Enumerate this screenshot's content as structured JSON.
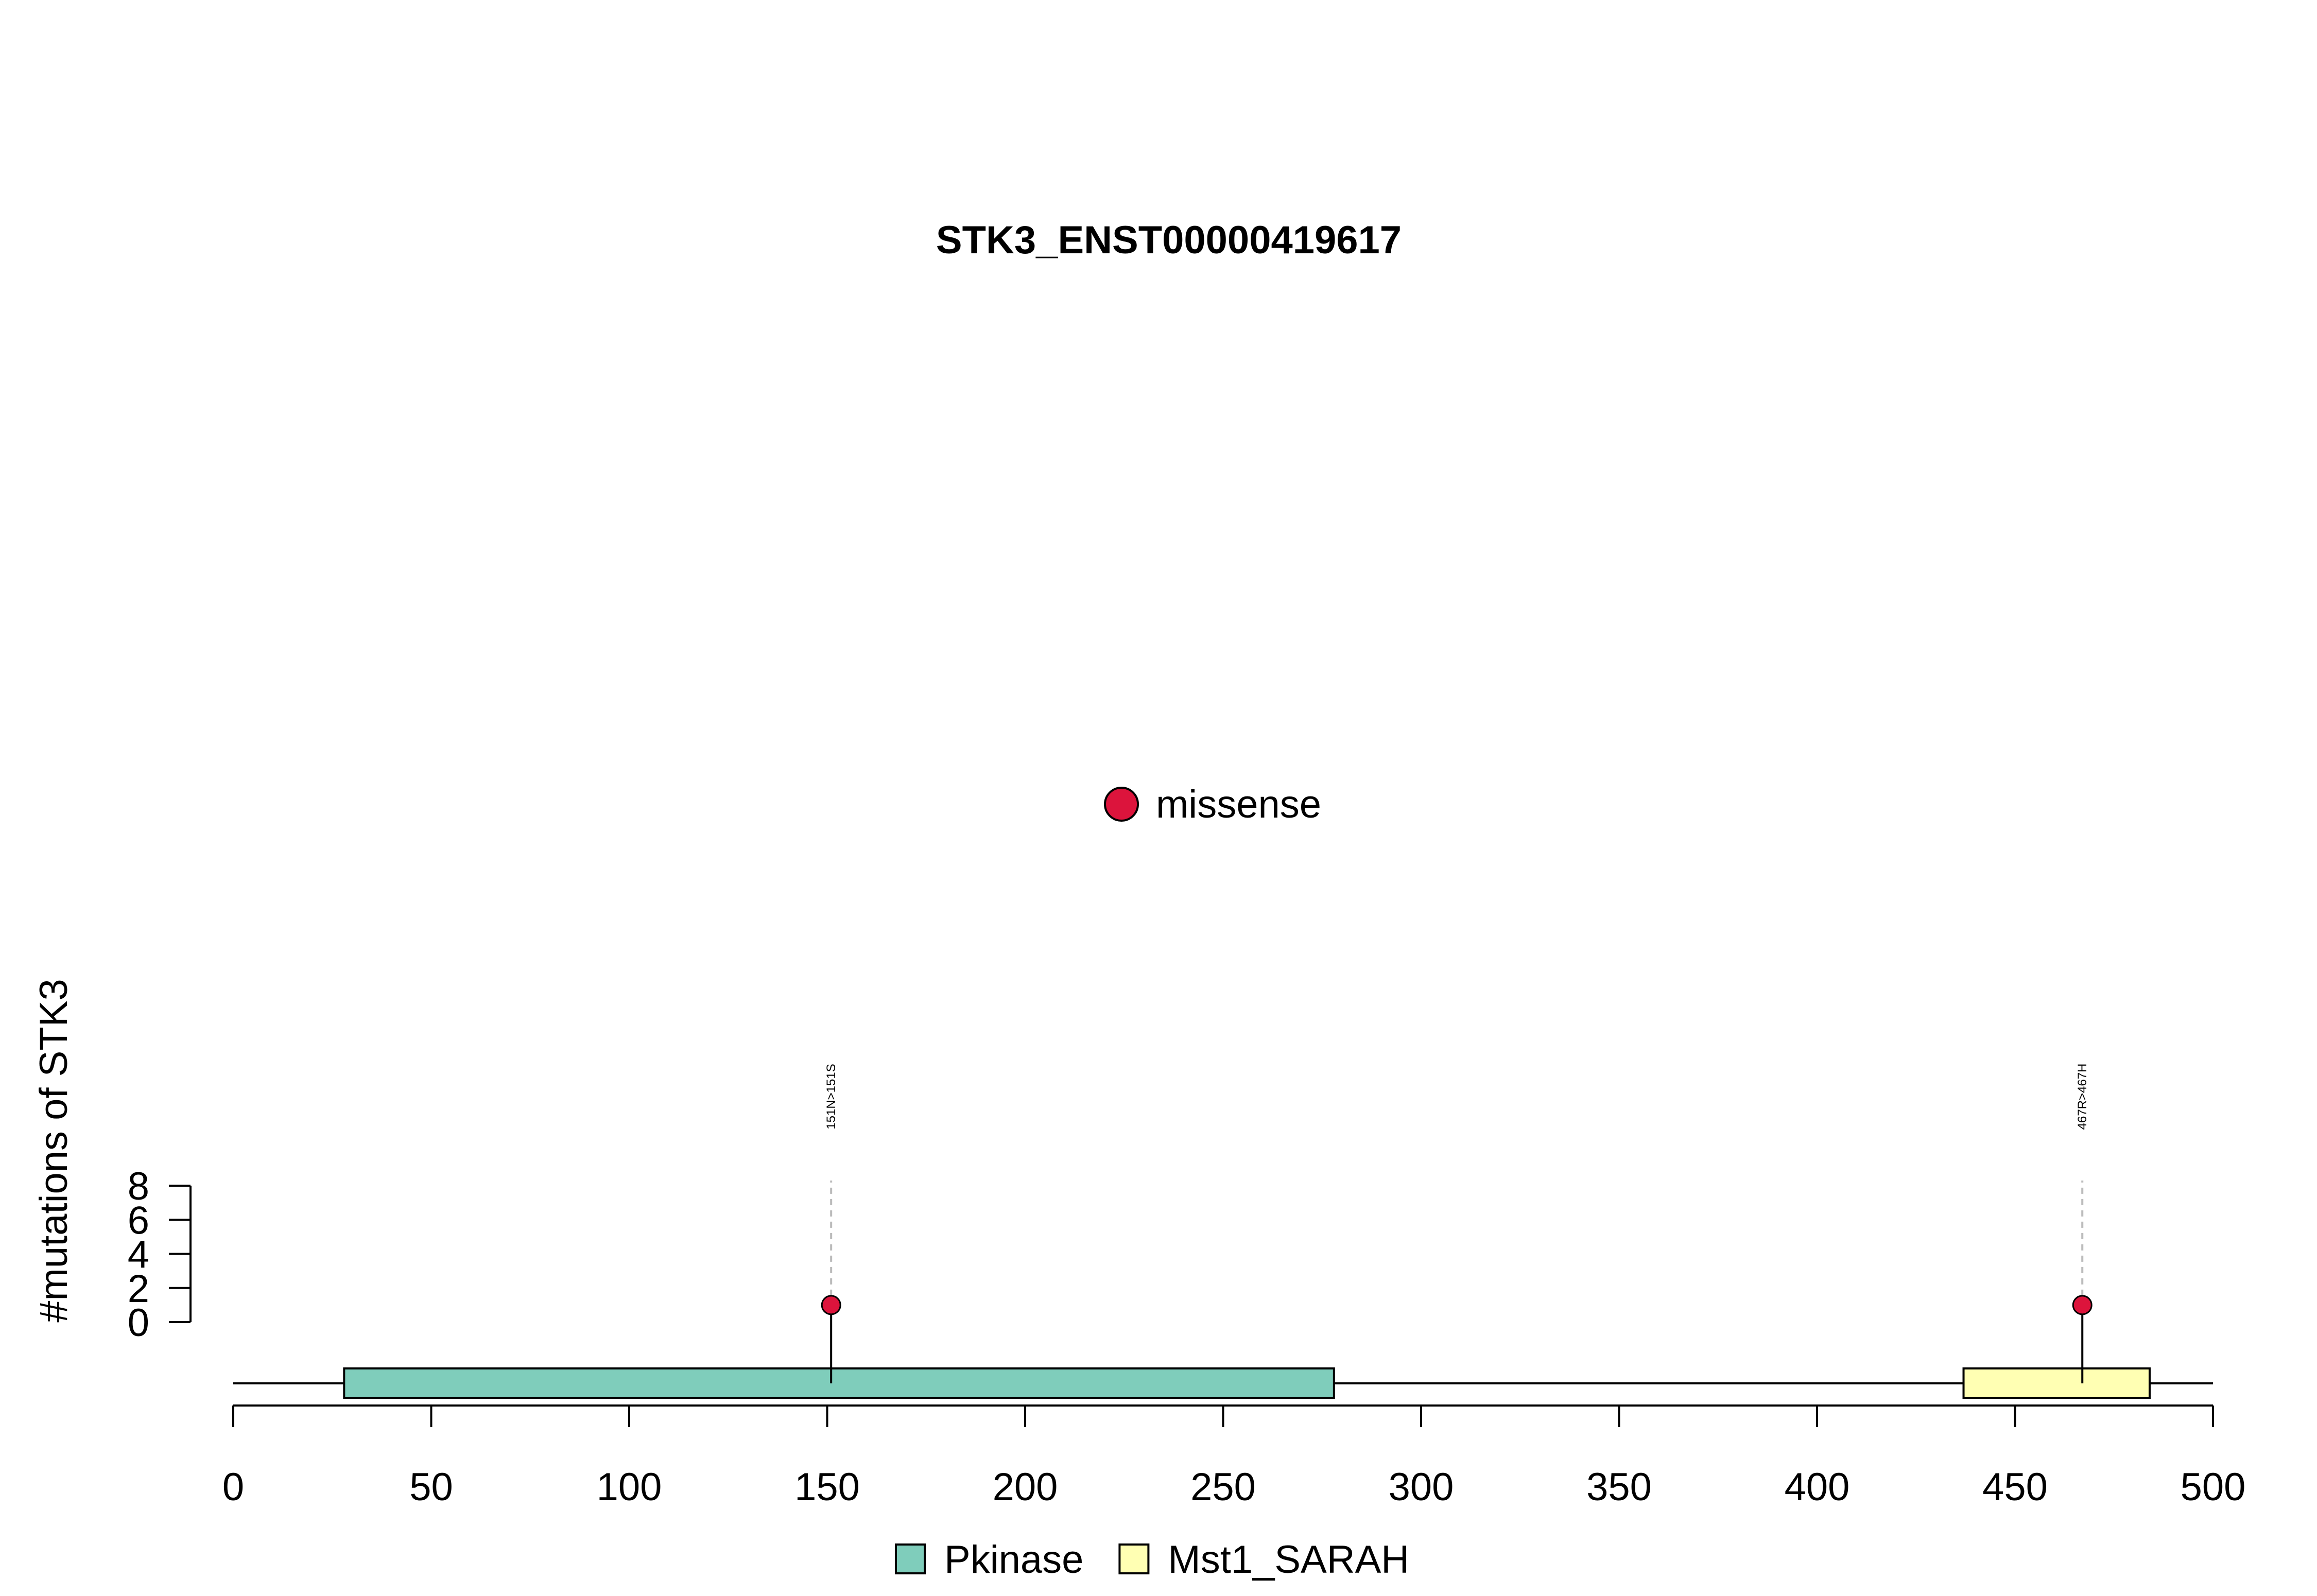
{
  "chart_data": {
    "type": "lollipop",
    "title": "STK3_ENST00000419617",
    "ylabel": "#mutations of STK3",
    "xlabel": "",
    "x_ticks": [
      0,
      50,
      100,
      150,
      200,
      250,
      300,
      350,
      400,
      450,
      500
    ],
    "xlim": [
      0,
      500
    ],
    "y_ticks": [
      0,
      2,
      4,
      6,
      8
    ],
    "ylim": [
      0,
      8
    ],
    "protein_length": 500,
    "domains": [
      {
        "name": "Pkinase",
        "start": 28,
        "end": 278,
        "color": "#7fcdbb"
      },
      {
        "name": "Mst1_SARAH",
        "start": 437,
        "end": 484,
        "color": "#ffffb3"
      }
    ],
    "mutations": [
      {
        "position": 151,
        "label": "151N>151S",
        "count": 1,
        "type": "missense"
      },
      {
        "position": 467,
        "label": "467R>467H",
        "count": 1,
        "type": "missense"
      }
    ],
    "mutation_legend": [
      {
        "label": "missense",
        "color": "#dc143c"
      }
    ],
    "domain_legend": [
      {
        "label": "Pkinase",
        "color": "#7fcdbb"
      },
      {
        "label": "Mst1_SARAH",
        "color": "#ffffb3"
      }
    ],
    "grid": false
  }
}
